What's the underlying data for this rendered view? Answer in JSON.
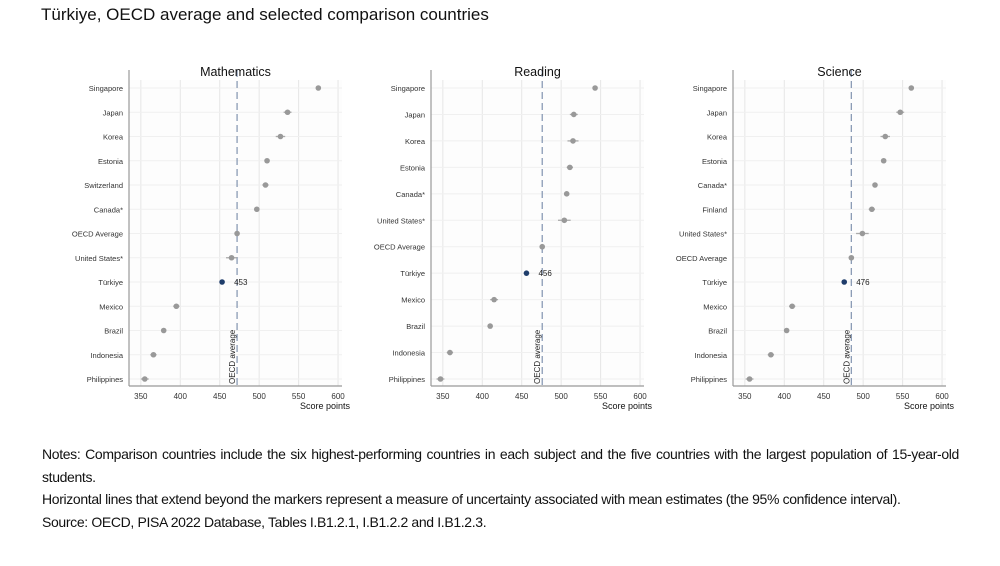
{
  "title": "Türkiye, OECD average and selected comparison countries",
  "colors": {
    "marker": "#999999",
    "highlight": "#1f3d6b",
    "oecd_line": "#8a9bb5",
    "grid": "#e6e6e6"
  },
  "chart_data": [
    {
      "type": "scatter",
      "title": "Mathematics",
      "xlabel": "Score points",
      "xlim": [
        335,
        605
      ],
      "xticks": [
        350,
        400,
        450,
        500,
        550,
        600
      ],
      "reference_line": {
        "label": "OECD average",
        "value": 472
      },
      "highlight": {
        "country": "Türkiye",
        "label": "453"
      },
      "points": [
        {
          "country": "Singapore",
          "value": 575,
          "ci": 3
        },
        {
          "country": "Japan",
          "value": 536,
          "ci": 5
        },
        {
          "country": "Korea",
          "value": 527,
          "ci": 6
        },
        {
          "country": "Estonia",
          "value": 510,
          "ci": 3
        },
        {
          "country": "Switzerland",
          "value": 508,
          "ci": 4
        },
        {
          "country": "Canada*",
          "value": 497,
          "ci": 3
        },
        {
          "country": "OECD Average",
          "value": 472,
          "ci": 1
        },
        {
          "country": "United States*",
          "value": 465,
          "ci": 7
        },
        {
          "country": "Türkiye",
          "value": 453,
          "ci": 3
        },
        {
          "country": "Mexico",
          "value": 395,
          "ci": 4
        },
        {
          "country": "Brazil",
          "value": 379,
          "ci": 3
        },
        {
          "country": "Indonesia",
          "value": 366,
          "ci": 4
        },
        {
          "country": "Philippines",
          "value": 355,
          "ci": 5
        }
      ]
    },
    {
      "type": "scatter",
      "title": "Reading",
      "xlabel": "Score points",
      "xlim": [
        335,
        605
      ],
      "xticks": [
        350,
        400,
        450,
        500,
        550,
        600
      ],
      "reference_line": {
        "label": "OECD average",
        "value": 476
      },
      "highlight": {
        "country": "Türkiye",
        "label": "456"
      },
      "points": [
        {
          "country": "Singapore",
          "value": 543,
          "ci": 3
        },
        {
          "country": "Japan",
          "value": 516,
          "ci": 5
        },
        {
          "country": "Korea",
          "value": 515,
          "ci": 7
        },
        {
          "country": "Estonia",
          "value": 511,
          "ci": 4
        },
        {
          "country": "Canada*",
          "value": 507,
          "ci": 3
        },
        {
          "country": "United States*",
          "value": 504,
          "ci": 8
        },
        {
          "country": "OECD Average",
          "value": 476,
          "ci": 1
        },
        {
          "country": "Türkiye",
          "value": 456,
          "ci": 3
        },
        {
          "country": "Mexico",
          "value": 415,
          "ci": 5
        },
        {
          "country": "Brazil",
          "value": 410,
          "ci": 3
        },
        {
          "country": "Indonesia",
          "value": 359,
          "ci": 4
        },
        {
          "country": "Philippines",
          "value": 347,
          "ci": 5
        }
      ]
    },
    {
      "type": "scatter",
      "title": "Science",
      "xlabel": "Score points",
      "xlim": [
        335,
        605
      ],
      "xticks": [
        350,
        400,
        450,
        500,
        550,
        600
      ],
      "reference_line": {
        "label": "OECD average",
        "value": 485
      },
      "highlight": {
        "country": "Türkiye",
        "label": "476"
      },
      "points": [
        {
          "country": "Singapore",
          "value": 561,
          "ci": 3
        },
        {
          "country": "Japan",
          "value": 547,
          "ci": 5
        },
        {
          "country": "Korea",
          "value": 528,
          "ci": 6
        },
        {
          "country": "Estonia",
          "value": 526,
          "ci": 3
        },
        {
          "country": "Canada*",
          "value": 515,
          "ci": 3
        },
        {
          "country": "Finland",
          "value": 511,
          "ci": 4
        },
        {
          "country": "United States*",
          "value": 499,
          "ci": 8
        },
        {
          "country": "OECD Average",
          "value": 485,
          "ci": 1
        },
        {
          "country": "Türkiye",
          "value": 476,
          "ci": 3
        },
        {
          "country": "Mexico",
          "value": 410,
          "ci": 4
        },
        {
          "country": "Brazil",
          "value": 403,
          "ci": 3
        },
        {
          "country": "Indonesia",
          "value": 383,
          "ci": 4
        },
        {
          "country": "Philippines",
          "value": 356,
          "ci": 5
        }
      ]
    }
  ],
  "notes": [
    "Notes: Comparison countries include the six highest-performing countries in each subject and the five countries with the largest population of 15-year-old students.",
    "Horizontal lines that extend beyond the markers represent a measure of uncertainty associated with mean estimates (the 95% confidence interval).",
    "Source: OECD, PISA 2022 Database, Tables I.B1.2.1, I.B1.2.2 and I.B1.2.3."
  ]
}
